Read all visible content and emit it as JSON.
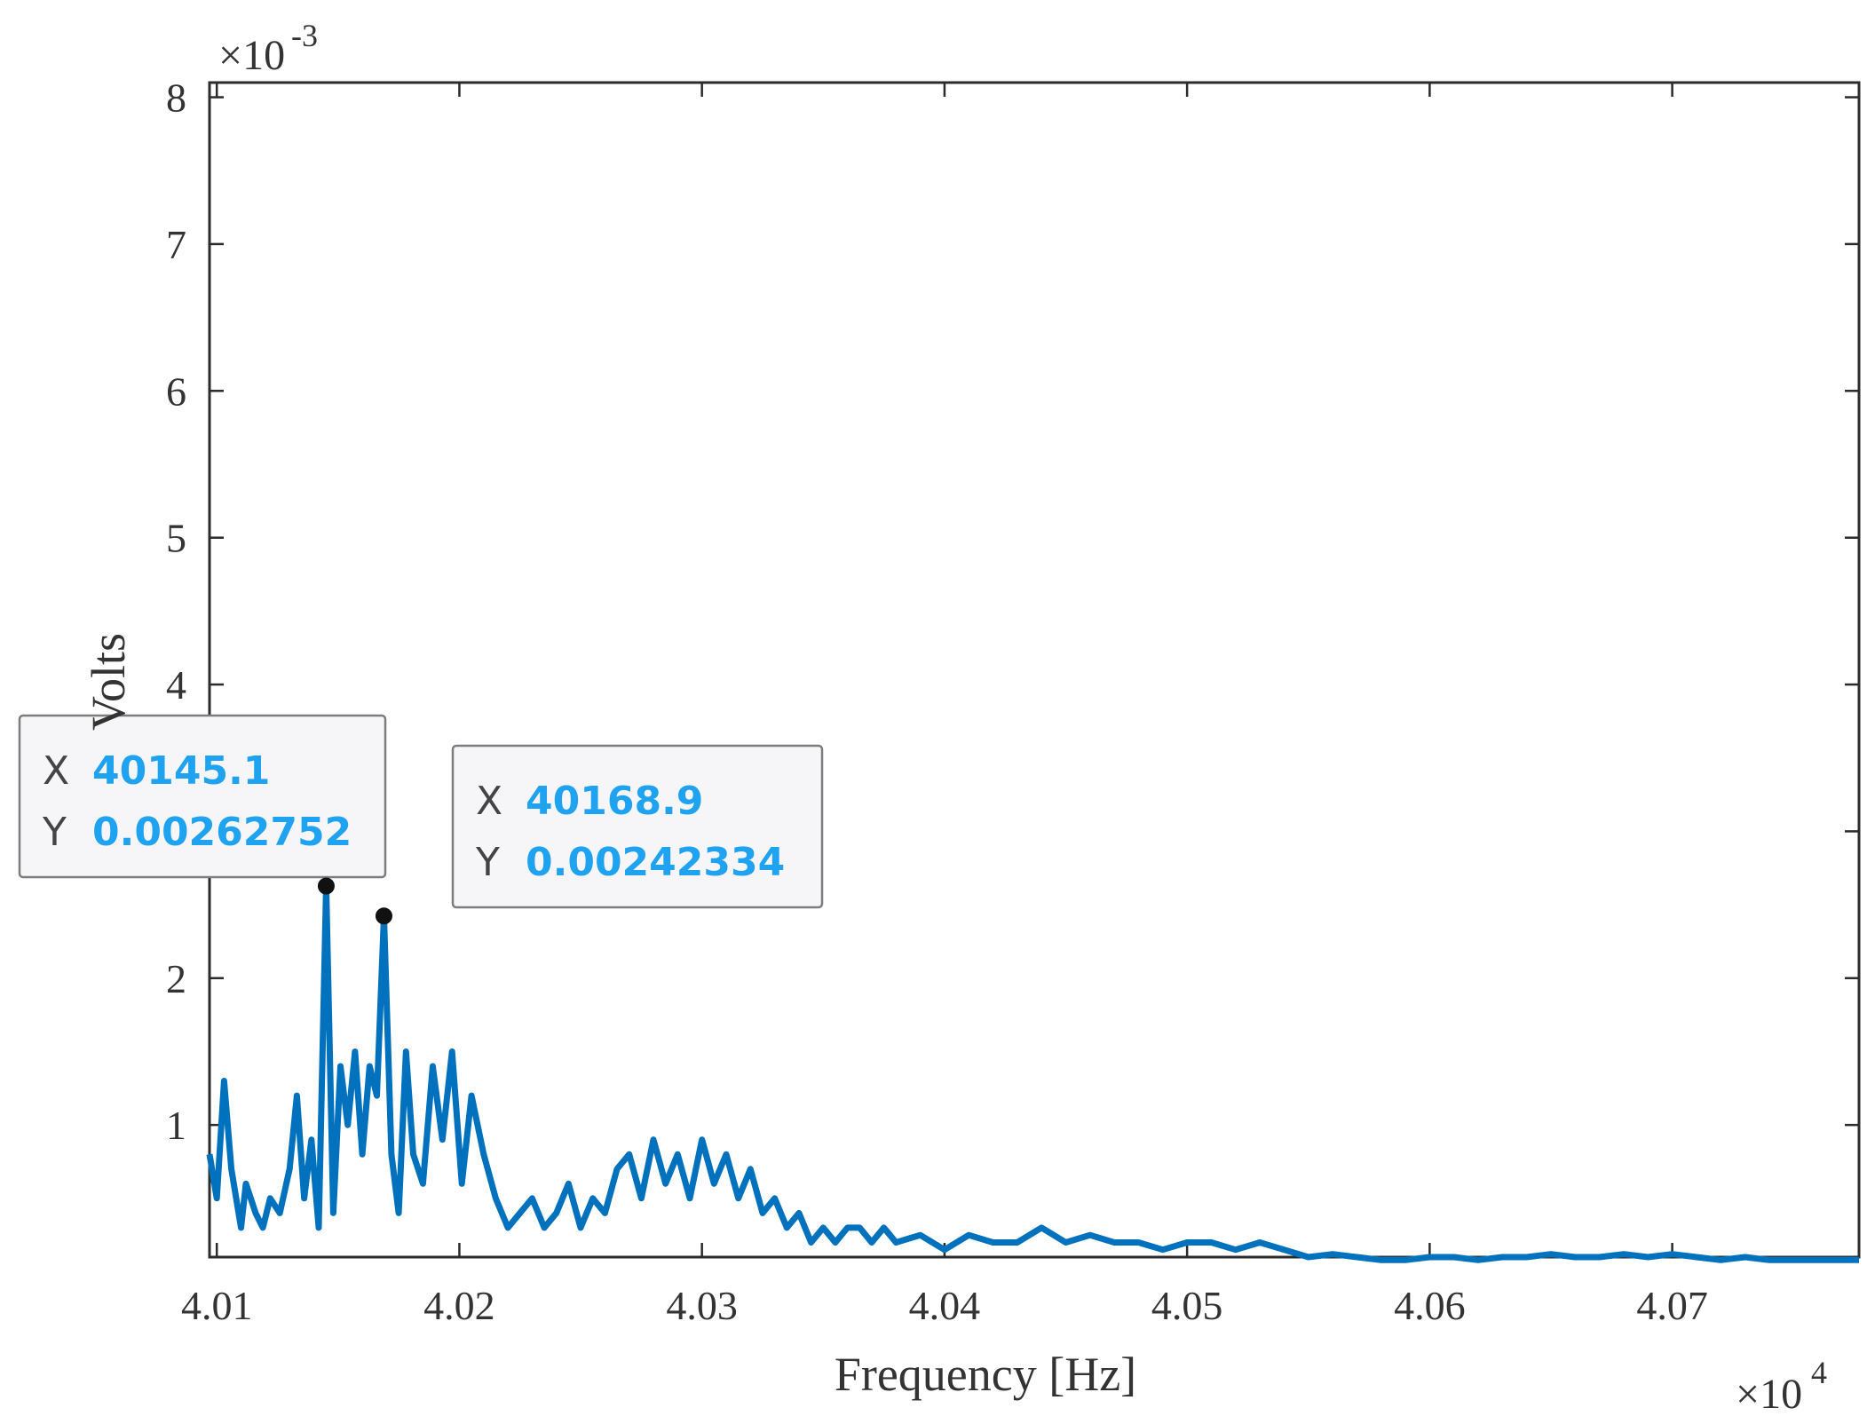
{
  "chart_data": {
    "type": "line",
    "title": "",
    "xlabel": "Frequency [Hz]",
    "ylabel": "Volts",
    "xlim": [
      40097,
      40777
    ],
    "ylim": [
      0.0001,
      0.0081
    ],
    "x_ticks": [
      40100,
      40200,
      40300,
      40400,
      40500,
      40600,
      40700
    ],
    "x_tick_labels": [
      "4.01",
      "4.02",
      "4.03",
      "4.04",
      "4.05",
      "4.06",
      "4.07"
    ],
    "x_multiplier": {
      "base": "×10",
      "exponent": "4"
    },
    "y_ticks": [
      0.001,
      0.002,
      0.003,
      0.004,
      0.005,
      0.006,
      0.007,
      0.008
    ],
    "y_tick_labels": [
      "1",
      "2",
      "3",
      "4",
      "5",
      "6",
      "7",
      "8"
    ],
    "y_multiplier": {
      "base": "×10",
      "exponent": "-3"
    },
    "grid": false,
    "series_color": "#0072bd",
    "series": [
      {
        "x": [
          40097,
          40100,
          40103,
          40106,
          40110,
          40112,
          40116,
          40119,
          40122,
          40126,
          40130,
          40133,
          40136,
          40139,
          40142,
          40145.1,
          40148,
          40151,
          40154,
          40157,
          40160,
          40163,
          40166,
          40168.9,
          40172,
          40175,
          40178,
          40181,
          40185,
          40189,
          40193,
          40197,
          40201,
          40205,
          40210,
          40215,
          40220,
          40225,
          40230,
          40235,
          40240,
          40245,
          40250,
          40255,
          40260,
          40265,
          40270,
          40275,
          40280,
          40285,
          40290,
          40295,
          40300,
          40305,
          40310,
          40315,
          40320,
          40325,
          40330,
          40335,
          40340,
          40345,
          40350,
          40355,
          40360,
          40365,
          40370,
          40375,
          40380,
          40390,
          40400,
          40410,
          40420,
          40430,
          40440,
          40450,
          40460,
          40470,
          40480,
          40490,
          40500,
          40510,
          40520,
          40530,
          40540,
          40550,
          40560,
          40570,
          40580,
          40590,
          40600,
          40610,
          40620,
          40630,
          40640,
          40650,
          40660,
          40670,
          40680,
          40690,
          40700,
          40710,
          40720,
          40730,
          40740,
          40750,
          40760,
          40770,
          40777
        ],
        "y": [
          0.0008,
          0.0005,
          0.0013,
          0.0007,
          0.0003,
          0.0006,
          0.0004,
          0.0003,
          0.0005,
          0.0004,
          0.0007,
          0.0012,
          0.0005,
          0.0009,
          0.0003,
          0.00262752,
          0.0004,
          0.0014,
          0.001,
          0.0015,
          0.0008,
          0.0014,
          0.0012,
          0.00242334,
          0.0008,
          0.0004,
          0.0015,
          0.0008,
          0.0006,
          0.0014,
          0.0009,
          0.0015,
          0.0006,
          0.0012,
          0.0008,
          0.0005,
          0.0003,
          0.0004,
          0.0005,
          0.0003,
          0.0004,
          0.0006,
          0.0003,
          0.0005,
          0.0004,
          0.0007,
          0.0008,
          0.0005,
          0.0009,
          0.0006,
          0.0008,
          0.0005,
          0.0009,
          0.0006,
          0.0008,
          0.0005,
          0.0007,
          0.0004,
          0.0005,
          0.0003,
          0.0004,
          0.0002,
          0.0003,
          0.0002,
          0.0003,
          0.0003,
          0.0002,
          0.0003,
          0.0002,
          0.00025,
          0.00015,
          0.00025,
          0.0002,
          0.0002,
          0.0003,
          0.0002,
          0.00025,
          0.0002,
          0.0002,
          0.00015,
          0.0002,
          0.0002,
          0.00015,
          0.0002,
          0.00015,
          0.0001,
          0.00012,
          0.0001,
          8e-05,
          8e-05,
          0.0001,
          0.0001,
          8e-05,
          0.0001,
          0.0001,
          0.00012,
          0.0001,
          0.0001,
          0.00012,
          0.0001,
          0.00012,
          0.0001,
          8e-05,
          0.0001,
          8e-05,
          8e-05,
          8e-05,
          8e-05,
          8e-05
        ]
      }
    ],
    "datatips": [
      {
        "x": 40145.1,
        "y": 0.00262752,
        "x_key": "X",
        "y_key": "Y",
        "x_text": "40145.1",
        "y_text": "0.00262752"
      },
      {
        "x": 40168.9,
        "y": 0.00242334,
        "x_key": "X",
        "y_key": "Y",
        "x_text": "40168.9",
        "y_text": "0.00242334"
      }
    ]
  }
}
